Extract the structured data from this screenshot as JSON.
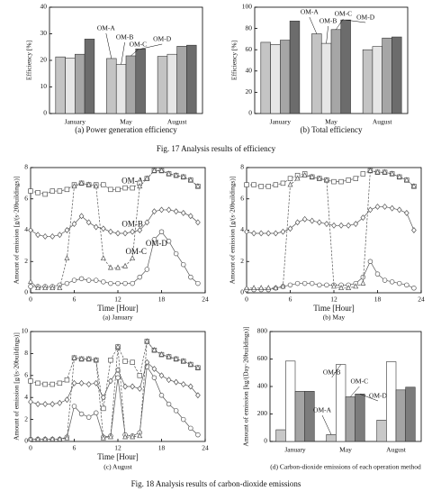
{
  "figure_17_caption": "Fig. 17  Analysis results of efficiency",
  "figure_18_caption": "Fig. 18  Analysis results of carbon-dioxide emissions",
  "chart_data": [
    {
      "type": "bar",
      "caption": "(a) Power generation efficiency",
      "ylabel": "Efficiency [%]",
      "categories": [
        "January",
        "May",
        "August"
      ],
      "series": [
        {
          "name": "OM-A",
          "color": "#c4c4c4",
          "values": [
            21.3,
            20.7,
            21.5
          ]
        },
        {
          "name": "OM-B",
          "color": "#e6e6e6",
          "values": [
            20.8,
            18.5,
            22.3
          ]
        },
        {
          "name": "OM-C",
          "color": "#a6a6a6",
          "values": [
            22.3,
            21.7,
            25.3
          ]
        },
        {
          "name": "OM-D",
          "color": "#6c6c6c",
          "values": [
            28,
            24.3,
            25.7
          ]
        }
      ],
      "ylim": [
        0,
        40
      ],
      "yticks": [
        0,
        10,
        20,
        30,
        40
      ]
    },
    {
      "type": "bar",
      "caption": "(b) Total efficiency",
      "ylabel": "Efficiency [%]",
      "categories": [
        "January",
        "May",
        "August"
      ],
      "series": [
        {
          "name": "OM-A",
          "color": "#c4c4c4",
          "values": [
            67,
            75,
            60
          ]
        },
        {
          "name": "OM-B",
          "color": "#e6e6e6",
          "values": [
            65,
            66,
            63
          ]
        },
        {
          "name": "OM-C",
          "color": "#a6a6a6",
          "values": [
            69,
            79,
            71
          ]
        },
        {
          "name": "OM-D",
          "color": "#6c6c6c",
          "values": [
            87,
            88,
            72
          ]
        }
      ],
      "ylim": [
        0,
        100
      ],
      "yticks": [
        0,
        20,
        40,
        60,
        80,
        100
      ]
    },
    {
      "type": "line",
      "caption": "(a) January",
      "xlabel": "Time [Hour]",
      "ylabel": "Amount of emission  [g/(s·20buildings)]",
      "x": [
        0,
        1,
        2,
        3,
        4,
        5,
        6,
        7,
        8,
        9,
        10,
        11,
        12,
        13,
        14,
        15,
        16,
        17,
        18,
        19,
        20,
        21,
        22,
        23
      ],
      "series": [
        {
          "name": "OM-A",
          "color": "#555555",
          "marker": "circle",
          "linestyle": "solid",
          "values": [
            0.4,
            0.4,
            0.4,
            0.4,
            0.5,
            0.6,
            0.8,
            0.9,
            0.8,
            0.8,
            0.7,
            0.6,
            0.6,
            0.6,
            0.6,
            1.0,
            1.5,
            3.4,
            3.9,
            3.3,
            2.5,
            1.8,
            1.0,
            0.6
          ]
        },
        {
          "name": "OM-B",
          "color": "#555555",
          "marker": "square",
          "linestyle": "dashed",
          "values": [
            6.5,
            6.4,
            6.3,
            6.5,
            6.5,
            6.6,
            6.9,
            7.0,
            6.9,
            6.9,
            6.9,
            6.6,
            6.6,
            6.7,
            6.7,
            7.0,
            7.3,
            7.8,
            7.8,
            7.6,
            7.5,
            7.4,
            7.2,
            6.8
          ]
        },
        {
          "name": "OM-C",
          "color": "#555555",
          "marker": "triangle",
          "linestyle": "dashed",
          "values": [
            0.7,
            0.3,
            0.3,
            0.3,
            0.3,
            2.2,
            6.8,
            7.0,
            6.9,
            6.8,
            2.2,
            1.6,
            1.6,
            1.7,
            2.2,
            6.8,
            7.3,
            7.8,
            7.8,
            7.6,
            7.5,
            7.4,
            7.2,
            6.8
          ]
        },
        {
          "name": "OM-D",
          "color": "#555555",
          "marker": "diamond",
          "linestyle": "solid",
          "values": [
            4.0,
            3.7,
            3.6,
            3.6,
            3.7,
            4.0,
            4.4,
            4.9,
            4.5,
            4.2,
            4.1,
            3.9,
            3.8,
            3.8,
            3.9,
            4.0,
            4.5,
            5.2,
            5.3,
            5.3,
            5.2,
            5.1,
            4.9,
            4.5
          ]
        }
      ],
      "xlim": [
        0,
        24
      ],
      "xticks": [
        0,
        6,
        12,
        18,
        24
      ],
      "ylim": [
        0,
        8
      ],
      "yticks": [
        0,
        2,
        4,
        6,
        8
      ]
    },
    {
      "type": "line",
      "caption": "(b) May",
      "xlabel": "Time [Hour]",
      "ylabel": "Amount of emission  [g/(s·20buildings)]",
      "x": [
        0,
        1,
        2,
        3,
        4,
        5,
        6,
        7,
        8,
        9,
        10,
        11,
        12,
        13,
        14,
        15,
        16,
        17,
        18,
        19,
        20,
        21,
        22,
        23
      ],
      "series": [
        {
          "color": "#555555",
          "marker": "circle",
          "linestyle": "solid",
          "values": [
            0.2,
            0.2,
            0.2,
            0.2,
            0.3,
            0.4,
            0.5,
            0.6,
            0.6,
            0.6,
            0.5,
            0.5,
            0.5,
            0.5,
            0.5,
            0.6,
            1.0,
            2.0,
            1.2,
            0.8,
            0.7,
            0.6,
            0.5,
            0.3
          ]
        },
        {
          "color": "#555555",
          "marker": "square",
          "linestyle": "dashed",
          "values": [
            6.9,
            6.9,
            6.8,
            6.8,
            6.9,
            7.0,
            7.3,
            7.5,
            7.6,
            7.4,
            7.3,
            7.2,
            7.1,
            7.1,
            7.2,
            7.3,
            7.6,
            7.8,
            7.7,
            7.7,
            7.6,
            7.4,
            7.2,
            6.8
          ]
        },
        {
          "color": "#555555",
          "marker": "triangle",
          "linestyle": "dashed",
          "values": [
            0.3,
            0.3,
            0.3,
            0.3,
            0.3,
            0.4,
            6.9,
            7.3,
            7.5,
            7.4,
            7.3,
            7.2,
            0.4,
            0.3,
            0.3,
            0.4,
            0.6,
            7.8,
            7.7,
            7.7,
            7.6,
            7.4,
            7.2,
            6.8
          ]
        },
        {
          "color": "#555555",
          "marker": "diamond",
          "linestyle": "solid",
          "values": [
            3.9,
            3.8,
            3.8,
            3.8,
            3.8,
            3.9,
            4.1,
            4.5,
            4.7,
            4.6,
            4.5,
            4.4,
            4.3,
            4.3,
            4.3,
            4.4,
            4.8,
            5.3,
            5.5,
            5.5,
            5.4,
            5.3,
            5.1,
            4.0
          ]
        }
      ],
      "xlim": [
        0,
        24
      ],
      "xticks": [
        0,
        6,
        12,
        18,
        24
      ],
      "ylim": [
        0,
        8
      ],
      "yticks": [
        0,
        2,
        4,
        6,
        8
      ]
    },
    {
      "type": "line",
      "caption": "(c) August",
      "xlabel": "Time [Hour]",
      "ylabel": "Amount of emission  [g/(s·20buildings)]",
      "x": [
        0,
        1,
        2,
        3,
        4,
        5,
        6,
        7,
        8,
        9,
        10,
        11,
        12,
        13,
        14,
        15,
        16,
        17,
        18,
        19,
        20,
        21,
        22,
        23
      ],
      "series": [
        {
          "color": "#555555",
          "marker": "circle",
          "linestyle": "solid",
          "values": [
            0.2,
            0.2,
            0.2,
            0.2,
            0.2,
            0.4,
            3.2,
            2.5,
            2.2,
            2.6,
            0.4,
            0.5,
            5.8,
            0.6,
            0.5,
            0.8,
            6.8,
            5.8,
            4.2,
            3.4,
            2.8,
            2.0,
            1.2,
            0.6
          ]
        },
        {
          "color": "#555555",
          "marker": "square",
          "linestyle": "dashed",
          "values": [
            5.5,
            5.3,
            5.2,
            5.2,
            5.3,
            5.6,
            7.6,
            7.5,
            7.5,
            7.4,
            3.0,
            7.4,
            8.6,
            7.3,
            7.2,
            6.0,
            9.1,
            8.3,
            7.9,
            7.7,
            7.5,
            7.3,
            7.0,
            6.7
          ]
        },
        {
          "color": "#555555",
          "marker": "triangle",
          "linestyle": "dashed",
          "values": [
            0.2,
            0.2,
            0.2,
            0.2,
            0.2,
            0.3,
            7.6,
            7.5,
            7.5,
            7.4,
            0.3,
            0.4,
            8.6,
            0.4,
            0.4,
            0.5,
            9.1,
            8.3,
            7.9,
            7.7,
            7.5,
            7.3,
            7.0,
            6.7
          ]
        },
        {
          "color": "#555555",
          "marker": "diamond",
          "linestyle": "solid",
          "values": [
            3.6,
            3.4,
            3.4,
            3.4,
            3.5,
            3.8,
            5.3,
            5.3,
            5.2,
            5.3,
            4.0,
            5.5,
            6.5,
            5.0,
            5.0,
            4.8,
            7.2,
            6.6,
            6.0,
            5.6,
            5.4,
            5.2,
            5.0,
            4.2
          ]
        }
      ],
      "xlim": [
        0,
        24
      ],
      "xticks": [
        0,
        6,
        12,
        18,
        24
      ],
      "ylim": [
        0,
        10
      ],
      "yticks": [
        0,
        2,
        4,
        6,
        8,
        10
      ]
    },
    {
      "type": "bar",
      "caption": "(d) Carbon-dioxide emissions of each operation method",
      "ylabel": "Amount of emission  [kg/(Day·20buildings)]",
      "categories": [
        "January",
        "May",
        "August"
      ],
      "series": [
        {
          "name": "OM-A",
          "color": "#c8c8c8",
          "values": [
            85,
            50,
            155
          ]
        },
        {
          "name": "OM-B",
          "color": "#ffffff",
          "values": [
            585,
            560,
            580
          ]
        },
        {
          "name": "OM-C",
          "color": "#a4a4a4",
          "values": [
            365,
            325,
            375
          ]
        },
        {
          "name": "OM-D",
          "color": "#7c7c7c",
          "values": [
            365,
            345,
            395
          ]
        }
      ],
      "ylim": [
        0,
        800
      ],
      "yticks": [
        0,
        200,
        400,
        600,
        800
      ]
    }
  ]
}
